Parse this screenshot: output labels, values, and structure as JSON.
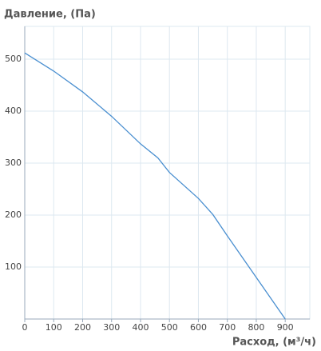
{
  "chart_data": {
    "type": "line",
    "title": "Давление, (Па)",
    "x_label": "Расход, (м³/ч)",
    "x": [
      0,
      100,
      200,
      300,
      400,
      460,
      500,
      600,
      650,
      700,
      800,
      900
    ],
    "series": [
      {
        "color": "#4a8fd0",
        "values": [
          512,
          477,
          437,
          390,
          337,
          310,
          282,
          232,
          201,
          160,
          80,
          0
        ]
      }
    ],
    "xlim": [
      0,
      985
    ],
    "ylim": [
      0,
      563
    ],
    "xticks": [
      0,
      100,
      200,
      300,
      400,
      500,
      600,
      700,
      800,
      900
    ],
    "yticks": [
      100,
      200,
      300,
      400,
      500
    ],
    "grid": true
  }
}
